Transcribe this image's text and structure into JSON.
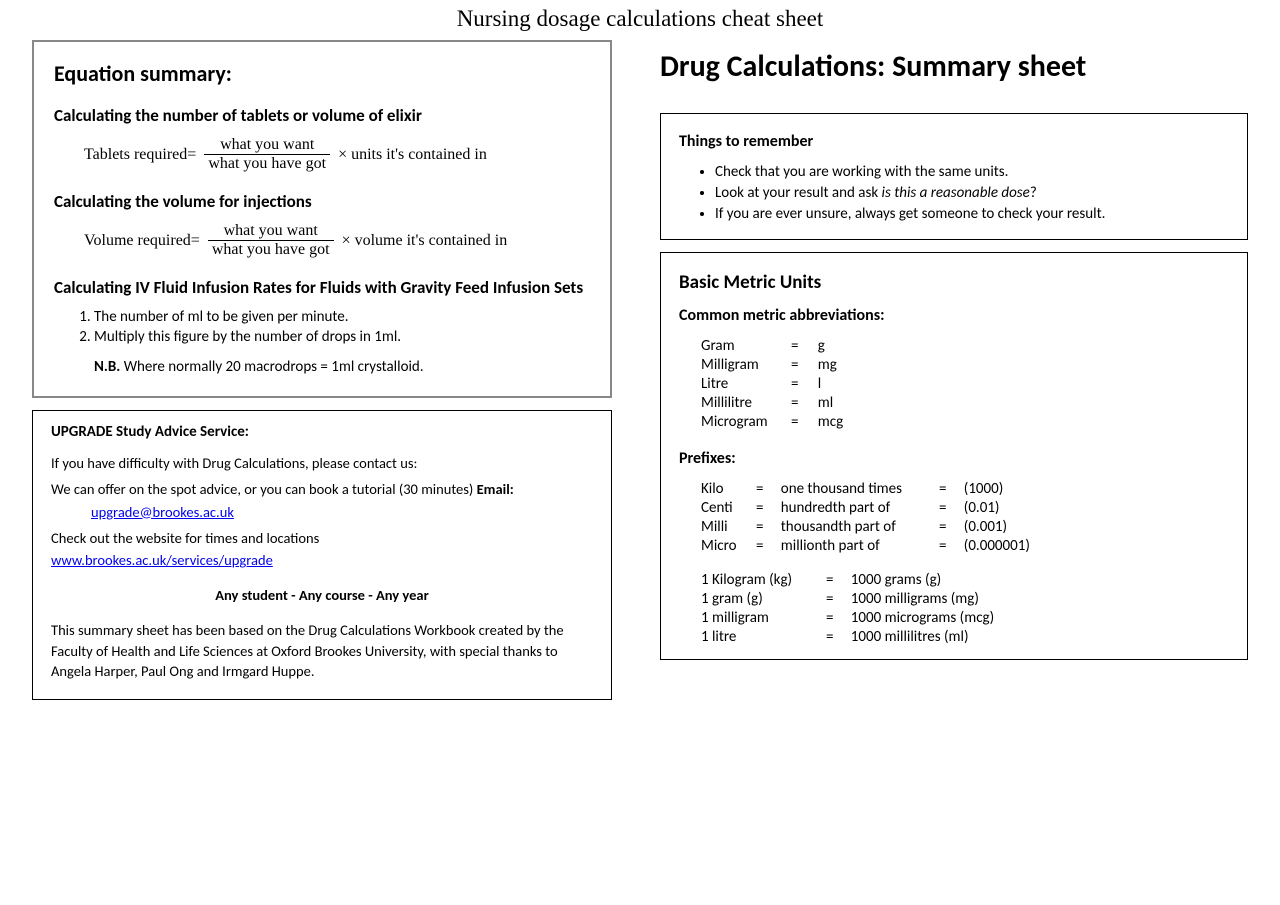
{
  "page_title": "Nursing dosage calculations cheat sheet",
  "left": {
    "equation_summary": {
      "title": "Equation summary:",
      "section1": {
        "title": "Calculating the number of tablets or volume of elixir",
        "label": "Tablets required=",
        "numerator": "what you want",
        "denominator": "what you have got",
        "tail": "× units it's contained in"
      },
      "section2": {
        "title": "Calculating the volume for injections",
        "label": "Volume required=",
        "numerator": "what you want",
        "denominator": "what you have got",
        "tail": "× volume it's contained in"
      },
      "section3": {
        "title": "Calculating IV Fluid Infusion Rates for Fluids with Gravity Feed Infusion Sets",
        "step1": "The number of ml to be given per minute.",
        "step2": "Multiply this figure by the number of drops in 1ml.",
        "nb_label": "N.B.",
        "nb_text": " Where normally 20 macrodrops = 1ml crystalloid."
      }
    },
    "upgrade": {
      "heading": "UPGRADE Study Advice Service:",
      "p1": "If you have difficulty with Drug Calculations, please contact us:",
      "p2a": "We can offer on the spot advice, or you can book a tutorial (30 minutes)   ",
      "p2b": "Email:",
      "email": "upgrade@brookes.ac.uk",
      "p3": "Check out the website for times and locations",
      "url": "www.brookes.ac.uk/services/upgrade",
      "slogan": "Any student - Any course - Any year",
      "p4": "This summary sheet has been based on the Drug Calculations Workbook created by the Faculty of Health and Life Sciences at Oxford Brookes University, with special thanks to Angela Harper, Paul Ong and Irmgard Huppe."
    }
  },
  "right": {
    "main_title": "Drug Calculations: Summary sheet",
    "remember": {
      "title": "Things to remember",
      "b1": "Check that you are working with the same units.",
      "b2a": "Look at your result and ask ",
      "b2b": "is this a reasonable dose",
      "b2c": "?",
      "b3": "If you are ever unsure, always get someone to check your result."
    },
    "metric": {
      "title": "Basic Metric Units",
      "abbr_title": "Common metric abbreviations:",
      "abbr": [
        {
          "name": "Gram",
          "eq": "=",
          "val": "g"
        },
        {
          "name": "Milligram",
          "eq": "=",
          "val": "mg"
        },
        {
          "name": "Litre",
          "eq": "=",
          "val": "l"
        },
        {
          "name": "Millilitre",
          "eq": "=",
          "val": "ml"
        },
        {
          "name": "Microgram",
          "eq": "=",
          "val": "mcg"
        }
      ],
      "prefix_title": "Prefixes:",
      "prefixes": [
        {
          "p": "Kilo",
          "e1": "=",
          "d": "one thousand times",
          "e2": "=",
          "v": "(1000)"
        },
        {
          "p": "Centi",
          "e1": "=",
          "d": "hundredth part of",
          "e2": "=",
          "v": "(0.01)"
        },
        {
          "p": "Milli",
          "e1": "=",
          "d": "thousandth part of",
          "e2": "=",
          "v": "(0.001)"
        },
        {
          "p": "Micro",
          "e1": "=",
          "d": "millionth part of",
          "e2": "=",
          "v": "(0.000001)"
        }
      ],
      "conversions": [
        {
          "a": "1 Kilogram (kg)",
          "e": "=",
          "b": "1000 grams (g)"
        },
        {
          "a": "1 gram (g)",
          "e": "=",
          "b": "1000 milligrams (mg)"
        },
        {
          "a": "1 milligram",
          "e": "=",
          "b": "1000 micrograms (mcg)"
        },
        {
          "a": "1 litre",
          "e": "=",
          "b": "1000 millilitres (ml)"
        }
      ]
    }
  }
}
